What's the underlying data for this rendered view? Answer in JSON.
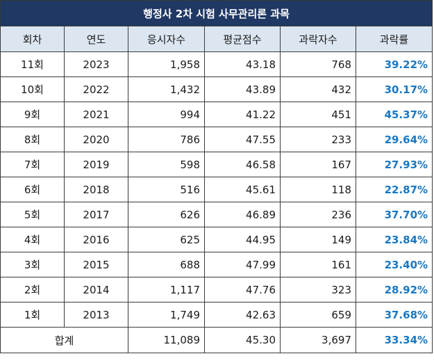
{
  "table_title": "행정사 2차 시험 사무관리론 과목",
  "headers": {
    "round": "회차",
    "year": "연도",
    "applicants": "응시자수",
    "avg_score": "평균점수",
    "fail_count": "과락자수",
    "fail_rate": "과락률"
  },
  "rows": [
    {
      "round": "11회",
      "year": "2023",
      "applicants": "1,958",
      "avg_score": "43.18",
      "fail_count": "768",
      "fail_rate": "39.22%"
    },
    {
      "round": "10회",
      "year": "2022",
      "applicants": "1,432",
      "avg_score": "43.89",
      "fail_count": "432",
      "fail_rate": "30.17%"
    },
    {
      "round": "9회",
      "year": "2021",
      "applicants": "994",
      "avg_score": "41.22",
      "fail_count": "451",
      "fail_rate": "45.37%"
    },
    {
      "round": "8회",
      "year": "2020",
      "applicants": "786",
      "avg_score": "47.55",
      "fail_count": "233",
      "fail_rate": "29.64%"
    },
    {
      "round": "7회",
      "year": "2019",
      "applicants": "598",
      "avg_score": "46.58",
      "fail_count": "167",
      "fail_rate": "27.93%"
    },
    {
      "round": "6회",
      "year": "2018",
      "applicants": "516",
      "avg_score": "45.61",
      "fail_count": "118",
      "fail_rate": "22.87%"
    },
    {
      "round": "5회",
      "year": "2017",
      "applicants": "626",
      "avg_score": "46.89",
      "fail_count": "236",
      "fail_rate": "37.70%"
    },
    {
      "round": "4회",
      "year": "2016",
      "applicants": "625",
      "avg_score": "44.95",
      "fail_count": "149",
      "fail_rate": "23.84%"
    },
    {
      "round": "3회",
      "year": "2015",
      "applicants": "688",
      "avg_score": "47.99",
      "fail_count": "161",
      "fail_rate": "23.40%"
    },
    {
      "round": "2회",
      "year": "2014",
      "applicants": "1,117",
      "avg_score": "47.76",
      "fail_count": "323",
      "fail_rate": "28.92%"
    },
    {
      "round": "1회",
      "year": "2013",
      "applicants": "1,749",
      "avg_score": "42.63",
      "fail_count": "659",
      "fail_rate": "37.68%"
    }
  ],
  "total": {
    "label": "합계",
    "applicants": "11,089",
    "avg_score": "45.30",
    "fail_count": "3,697",
    "fail_rate": "33.34%"
  },
  "colors": {
    "title_bg": "#1f3864",
    "header_bg": "#dce6f1",
    "rate_text": "#1a78c2"
  }
}
